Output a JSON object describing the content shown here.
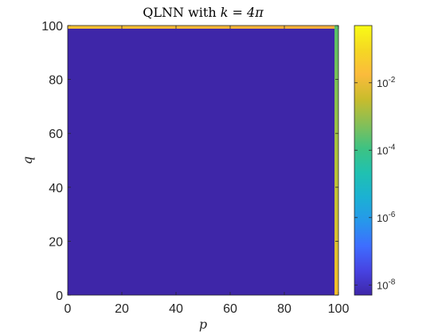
{
  "chart_data": {
    "type": "heatmap",
    "title_prefix": "QLNN with ",
    "title_math": "k = 4π",
    "xlabel": "p",
    "ylabel": "q",
    "xlim": [
      0,
      100
    ],
    "ylim": [
      0,
      100
    ],
    "xticks": [
      0,
      20,
      40,
      60,
      80,
      100
    ],
    "yticks": [
      0,
      20,
      40,
      60,
      80,
      100
    ],
    "colorbar": {
      "scale": "log",
      "range": [
        5e-09,
        0.5
      ],
      "ticks": [
        {
          "value": 1e-08,
          "base": "10",
          "exp": "-8"
        },
        {
          "value": 1e-06,
          "base": "10",
          "exp": "-6"
        },
        {
          "value": 0.0001,
          "base": "10",
          "exp": "-4"
        },
        {
          "value": 0.01,
          "base": "10",
          "exp": "-2"
        }
      ],
      "colormap": [
        "#3e26a8",
        "#4743e2",
        "#3e6dff",
        "#2797eb",
        "#1bb1d3",
        "#20c1b0",
        "#3ec282",
        "#87bf56",
        "#c9bc2c",
        "#fbbb3c",
        "#f5d823",
        "#f9fb15"
      ]
    },
    "field": {
      "background_value": 1e-08,
      "background_color": "#3e26a8",
      "top_edge": {
        "description_values": "q = 100 row",
        "color_from": "#f7b73a",
        "color_to": "#fbbb3c"
      },
      "right_edge": {
        "description_values": "p = 100 column",
        "color_top": "#55c06a",
        "color_bottom": "#f5c02b"
      }
    }
  }
}
